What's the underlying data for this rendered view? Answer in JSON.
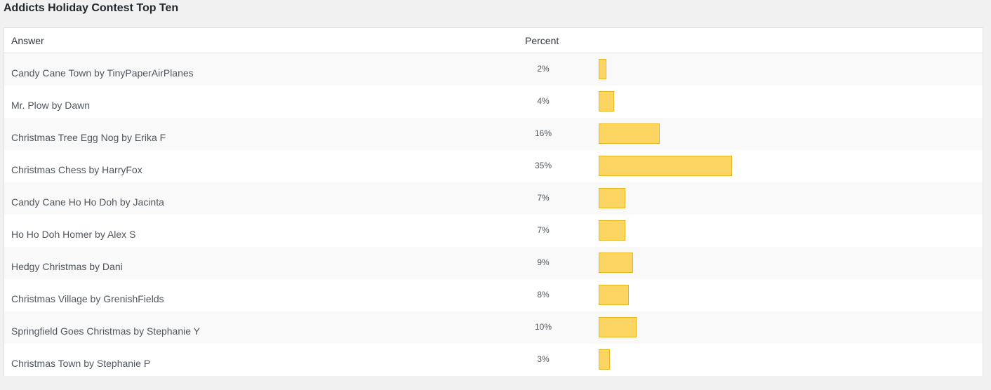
{
  "title": "Addicts Holiday Contest Top Ten",
  "table": {
    "headers": {
      "answer": "Answer",
      "percent": "Percent"
    },
    "rows": [
      {
        "answer": "Candy Cane Town by TinyPaperAirPlanes",
        "percent_label": "2%",
        "percent": 2
      },
      {
        "answer": "Mr. Plow by Dawn",
        "percent_label": "4%",
        "percent": 4
      },
      {
        "answer": "Christmas Tree Egg Nog by Erika F",
        "percent_label": "16%",
        "percent": 16
      },
      {
        "answer": "Christmas Chess by HarryFox",
        "percent_label": "35%",
        "percent": 35
      },
      {
        "answer": "Candy Cane Ho Ho Doh by Jacinta",
        "percent_label": "7%",
        "percent": 7
      },
      {
        "answer": "Ho Ho Doh Homer by Alex S",
        "percent_label": "7%",
        "percent": 7
      },
      {
        "answer": "Hedgy Christmas by Dani",
        "percent_label": "9%",
        "percent": 9
      },
      {
        "answer": "Christmas Village by GrenishFields",
        "percent_label": "8%",
        "percent": 8
      },
      {
        "answer": "Springfield Goes Christmas by Stephanie Y",
        "percent_label": "10%",
        "percent": 10
      },
      {
        "answer": "Christmas Town by Stephanie P",
        "percent_label": "3%",
        "percent": 3
      }
    ]
  },
  "colors": {
    "bar_fill": "#fdd562",
    "bar_border": "#e9b61d"
  }
}
